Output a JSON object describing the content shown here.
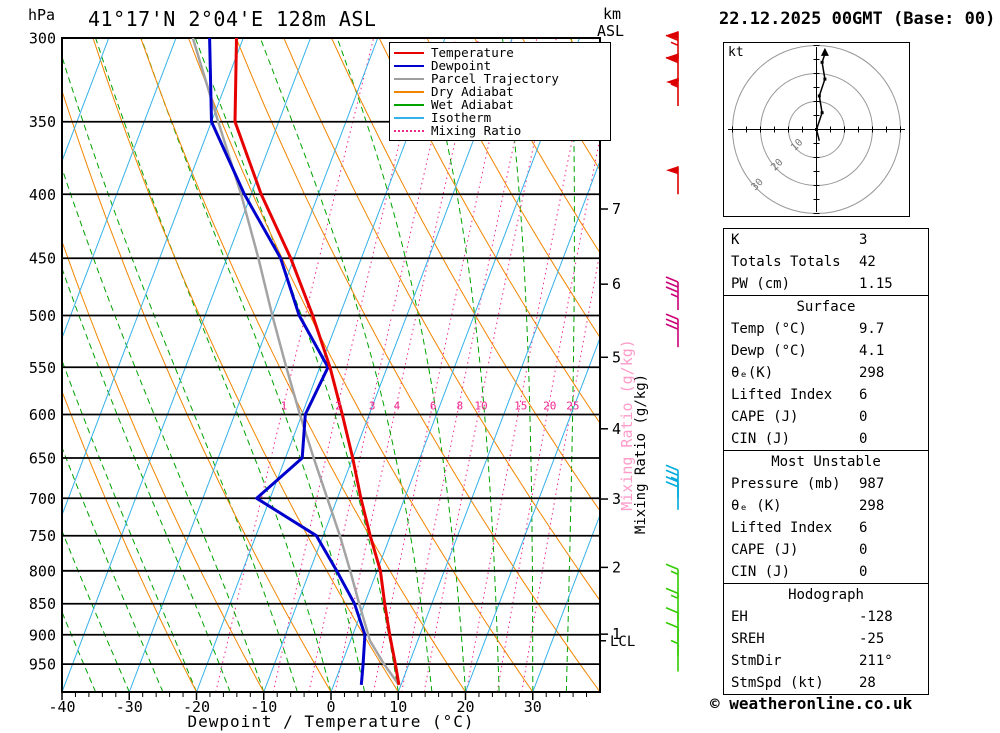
{
  "header": {
    "pressure_unit": "hPa",
    "station_title": "41°17'N 2°04'E 128m ASL",
    "altitude_unit_line1": "km",
    "altitude_unit_line2": "ASL",
    "datetime": "22.12.2025 00GMT (Base: 00)"
  },
  "legend": {
    "items": [
      {
        "label": "Temperature",
        "color": "#e60000",
        "style": "solid"
      },
      {
        "label": "Dewpoint",
        "color": "#0000cc",
        "style": "solid"
      },
      {
        "label": "Parcel Trajectory",
        "color": "#9e9e9e",
        "style": "solid"
      },
      {
        "label": "Dry Adiabat",
        "color": "#f28500",
        "style": "solid"
      },
      {
        "label": "Wet Adiabat",
        "color": "#00a300",
        "style": "solid"
      },
      {
        "label": "Isotherm",
        "color": "#35b1e8",
        "style": "solid"
      },
      {
        "label": "Mixing Ratio",
        "color": "#f0268f",
        "style": "dotted"
      }
    ]
  },
  "chart_data": {
    "type": "skewt",
    "xlabel": "Dewpoint / Temperature (°C)",
    "xlim": [
      -40,
      40
    ],
    "x_ticks": [
      -40,
      -30,
      -20,
      -10,
      0,
      10,
      20,
      30
    ],
    "plim": [
      300,
      1000
    ],
    "pressure_ticks": [
      300,
      350,
      400,
      450,
      500,
      550,
      600,
      650,
      700,
      750,
      800,
      850,
      900,
      950
    ],
    "km_ticks": [
      {
        "km": 1,
        "p": 899
      },
      {
        "km": 2,
        "p": 795
      },
      {
        "km": 3,
        "p": 701
      },
      {
        "km": 4,
        "p": 616
      },
      {
        "km": 5,
        "p": 540
      },
      {
        "km": 6,
        "p": 472
      },
      {
        "km": 7,
        "p": 411
      }
    ],
    "km_extra_ticks": [
      356
    ],
    "lcl": {
      "label": "LCL",
      "p": 910
    },
    "mixing_ratio_values": [
      1,
      2,
      3,
      4,
      6,
      8,
      10,
      15,
      20,
      25
    ],
    "mixing_ratio_axis_label": "Mixing Ratio (g/kg)",
    "isotherm_step": 10,
    "colors": {
      "temperature": "#e60000",
      "dewpoint": "#0000cc",
      "parcel": "#a3a3a3",
      "dry_adiabat": "#f28500",
      "wet_adiabat": "#00a300",
      "isotherm": "#35b1e8",
      "mixing_ratio": "#f0268f",
      "pressure_line": "#000000"
    },
    "series": {
      "temperature": [
        [
          987,
          9.7
        ],
        [
          950,
          8.0
        ],
        [
          900,
          5.5
        ],
        [
          850,
          3.0
        ],
        [
          800,
          0.5
        ],
        [
          750,
          -3.0
        ],
        [
          700,
          -6.5
        ],
        [
          650,
          -10.0
        ],
        [
          600,
          -14.0
        ],
        [
          550,
          -18.5
        ],
        [
          500,
          -24.0
        ],
        [
          450,
          -30.5
        ],
        [
          400,
          -38.5
        ],
        [
          350,
          -46.5
        ],
        [
          300,
          -51.0
        ]
      ],
      "dewpoint": [
        [
          987,
          4.1
        ],
        [
          950,
          3.2
        ],
        [
          900,
          1.8
        ],
        [
          850,
          -1.5
        ],
        [
          800,
          -6.0
        ],
        [
          750,
          -11.0
        ],
        [
          700,
          -22.0
        ],
        [
          650,
          -17.5
        ],
        [
          600,
          -19.5
        ],
        [
          550,
          -18.8
        ],
        [
          500,
          -26.0
        ],
        [
          450,
          -32.0
        ],
        [
          400,
          -41.0
        ],
        [
          350,
          -50.0
        ],
        [
          300,
          -55.0
        ]
      ],
      "parcel": [
        [
          987,
          9.7
        ],
        [
          950,
          6.3
        ],
        [
          910,
          2.9
        ],
        [
          850,
          -0.8
        ],
        [
          800,
          -4.0
        ],
        [
          750,
          -7.5
        ],
        [
          700,
          -11.5
        ],
        [
          650,
          -15.8
        ],
        [
          600,
          -20.3
        ],
        [
          550,
          -25.0
        ],
        [
          500,
          -30.0
        ],
        [
          450,
          -35.3
        ],
        [
          400,
          -41.5
        ],
        [
          350,
          -49.0
        ],
        [
          300,
          -57.5
        ]
      ]
    },
    "wind_barbs": [
      {
        "p": 312,
        "speed": 65,
        "color": "#dd0000"
      },
      {
        "p": 325,
        "speed": 60,
        "color": "#dd0000"
      },
      {
        "p": 340,
        "speed": 55,
        "color": "#dd0000"
      },
      {
        "p": 400,
        "speed": 50,
        "color": "#dd0000"
      },
      {
        "p": 495,
        "speed": 35,
        "color": "#cc0077"
      },
      {
        "p": 530,
        "speed": 30,
        "color": "#cc0077"
      },
      {
        "p": 700,
        "speed": 25,
        "color": "#00aadd"
      },
      {
        "p": 715,
        "speed": 20,
        "color": "#00aadd"
      },
      {
        "p": 840,
        "speed": 15,
        "color": "#33cc00"
      },
      {
        "p": 878,
        "speed": 15,
        "color": "#33cc00"
      },
      {
        "p": 910,
        "speed": 10,
        "color": "#33cc00"
      },
      {
        "p": 935,
        "speed": 10,
        "color": "#33cc00"
      },
      {
        "p": 963,
        "speed": 5,
        "color": "#33cc00"
      }
    ],
    "hodograph": {
      "unit_label": "kt",
      "rings": [
        10,
        20,
        30
      ],
      "ring_labels": [
        "10",
        "20",
        "30"
      ],
      "trace": [
        [
          1,
          -4
        ],
        [
          0,
          0
        ],
        [
          2,
          6
        ],
        [
          1,
          12
        ],
        [
          3,
          18
        ],
        [
          2,
          24
        ],
        [
          3,
          27
        ]
      ]
    }
  },
  "panel": {
    "sections": [
      {
        "header": null,
        "rows": [
          [
            "K",
            "3"
          ],
          [
            "Totals Totals",
            "42"
          ],
          [
            "PW (cm)",
            "1.15"
          ]
        ]
      },
      {
        "header": "Surface",
        "rows": [
          [
            "Temp (°C)",
            "9.7"
          ],
          [
            "Dewp (°C)",
            "4.1"
          ],
          [
            "θₑ(K)",
            "298"
          ],
          [
            "Lifted Index",
            "6"
          ],
          [
            "CAPE (J)",
            "0"
          ],
          [
            "CIN (J)",
            "0"
          ]
        ]
      },
      {
        "header": "Most Unstable",
        "rows": [
          [
            "Pressure (mb)",
            "987"
          ],
          [
            "θₑ (K)",
            "298"
          ],
          [
            "Lifted Index",
            "6"
          ],
          [
            "CAPE (J)",
            "0"
          ],
          [
            "CIN (J)",
            "0"
          ]
        ]
      },
      {
        "header": "Hodograph",
        "rows": [
          [
            "EH",
            "-128"
          ],
          [
            "SREH",
            "-25"
          ],
          [
            "StmDir",
            "211°"
          ],
          [
            "StmSpd (kt)",
            "28"
          ]
        ]
      }
    ]
  },
  "footer": {
    "credit": "© weatheronline.co.uk"
  }
}
